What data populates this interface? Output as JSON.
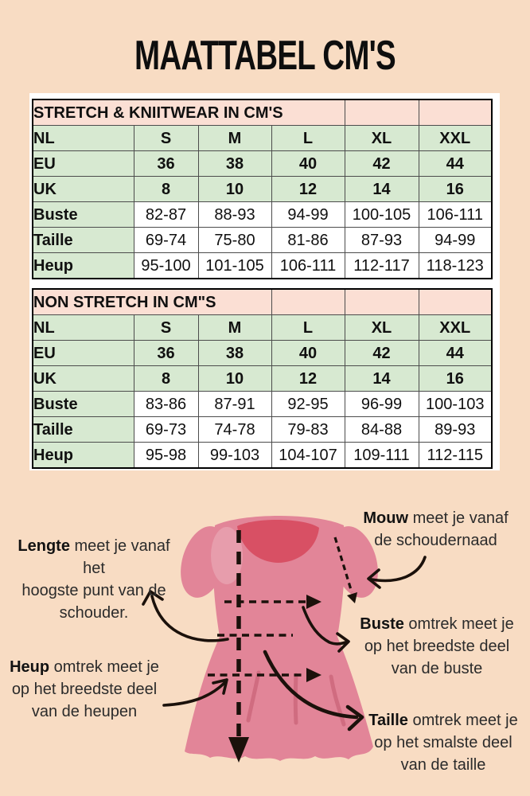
{
  "title": "MAATTABEL CM'S",
  "layout_hint_col_widths": [
    127,
    81,
    92,
    92,
    93,
    92
  ],
  "tables": [
    {
      "header": "STRETCH & KNIITWEAR IN CM'S",
      "header_span": 4,
      "size_rows": [
        {
          "label": "NL",
          "values": [
            "S",
            "M",
            "L",
            "XL",
            "XXL"
          ]
        },
        {
          "label": "EU",
          "values": [
            "36",
            "38",
            "40",
            "42",
            "44"
          ]
        },
        {
          "label": "UK",
          "values": [
            "8",
            "10",
            "12",
            "14",
            "16"
          ]
        }
      ],
      "measure_rows": [
        {
          "label": "Buste",
          "values": [
            "82-87",
            "88-93",
            "94-99",
            "100-105",
            "106-111"
          ]
        },
        {
          "label": "Taille",
          "values": [
            "69-74",
            "75-80",
            "81-86",
            "87-93",
            "94-99"
          ]
        },
        {
          "label": "Heup",
          "values": [
            "95-100",
            "101-105",
            "106-111",
            "112-117",
            "118-123"
          ]
        }
      ]
    },
    {
      "header": "NON STRETCH IN CM\"S",
      "header_span": 3,
      "size_rows": [
        {
          "label": "NL",
          "values": [
            "S",
            "M",
            "L",
            "XL",
            "XXL"
          ]
        },
        {
          "label": "EU",
          "values": [
            "36",
            "38",
            "40",
            "42",
            "44"
          ]
        },
        {
          "label": "UK",
          "values": [
            "8",
            "10",
            "12",
            "14",
            "16"
          ]
        }
      ],
      "measure_rows": [
        {
          "label": "Buste",
          "values": [
            "83-86",
            "87-91",
            "92-95",
            "96-99",
            "100-103"
          ]
        },
        {
          "label": "Taille",
          "values": [
            "69-73",
            "74-78",
            "79-83",
            "84-88",
            "89-93"
          ]
        },
        {
          "label": "Heup",
          "values": [
            "95-98",
            "99-103",
            "104-107",
            "109-111",
            "112-115"
          ]
        }
      ]
    }
  ],
  "annotations": {
    "lengte": {
      "bold": "Lengte",
      "line1": " meet je vanaf het",
      "line2": "hoogste punt van de",
      "line3": "schouder."
    },
    "mouw": {
      "bold": "Mouw",
      "line1": " meet je vanaf",
      "line2": "de schoudernaad"
    },
    "buste": {
      "bold": "Buste",
      "line1": " omtrek meet je",
      "line2": "op het breedste deel",
      "line3": "van de buste"
    },
    "heup": {
      "bold": "Heup",
      "line1": " omtrek meet je",
      "line2": "op het breedste deel",
      "line3": "van de heupen"
    },
    "taille": {
      "bold": "Taille",
      "line1": " omtrek meet je",
      "line2": "op het smalste deel",
      "line3": "van de taille"
    }
  },
  "colors": {
    "background": "#f8dcc3",
    "table_header_pink": "#fbdfd4",
    "table_green": "#d7e9d1",
    "table_cell_white": "#ffffff",
    "dress_pink": "#e28598",
    "dress_neckline": "#d85064",
    "ink": "#1b110b"
  }
}
